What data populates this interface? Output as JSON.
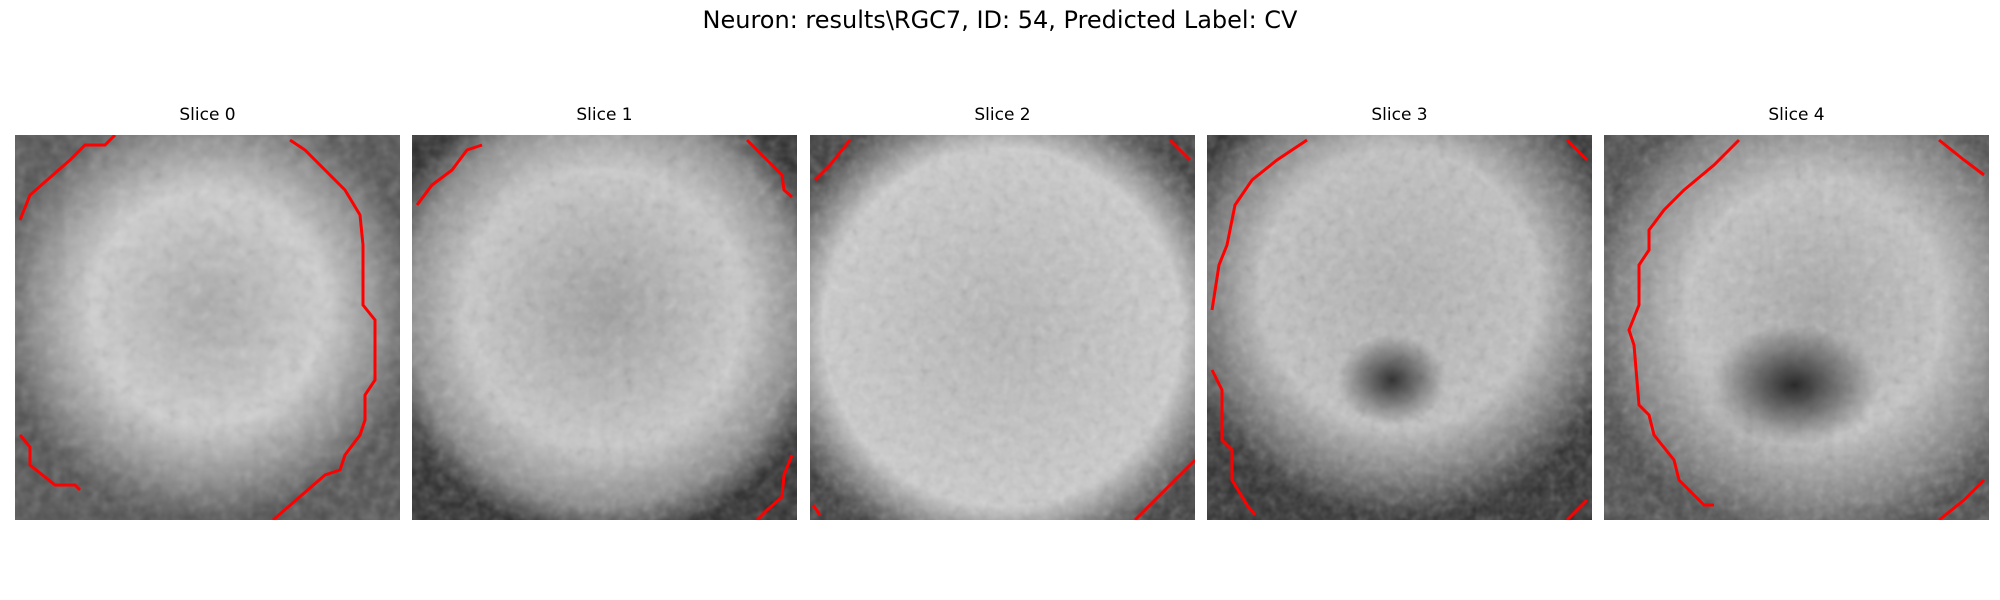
{
  "figure": {
    "title": "Neuron: results\\RGC7, ID: 54, Predicted Label: CV"
  },
  "slices": [
    {
      "label": "Slice 0"
    },
    {
      "label": "Slice 1"
    },
    {
      "label": "Slice 2"
    },
    {
      "label": "Slice 3"
    },
    {
      "label": "Slice 4"
    }
  ],
  "colors": {
    "contour": "#ff0000",
    "background": "#ffffff"
  }
}
